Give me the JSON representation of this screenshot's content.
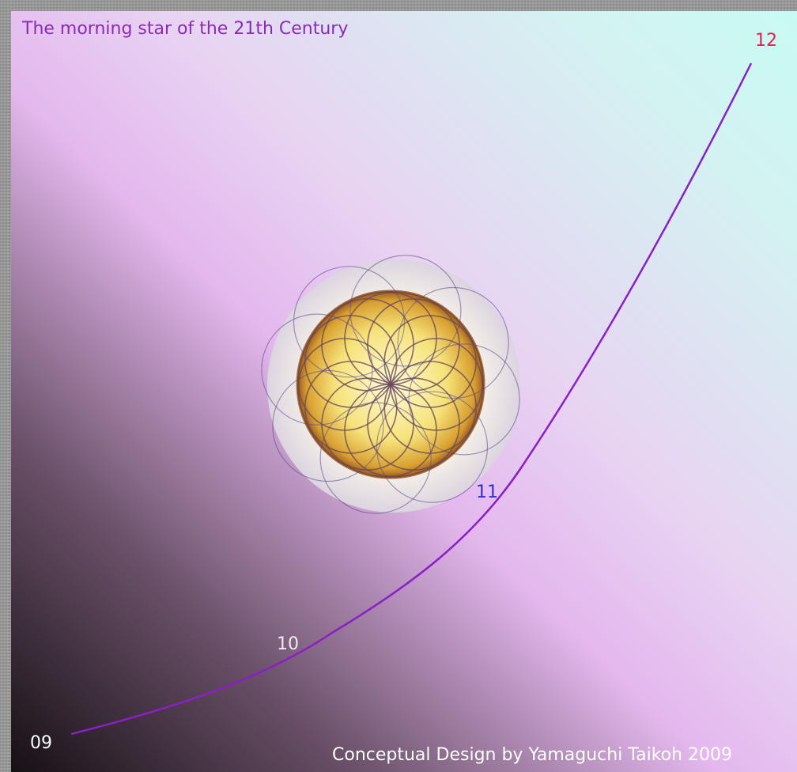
{
  "title": "The morning star of the 21th Century",
  "labels": [
    "09",
    "10",
    "11",
    "12"
  ],
  "credit": "Conceptual Design by Yamaguchi Taikoh 2009"
}
